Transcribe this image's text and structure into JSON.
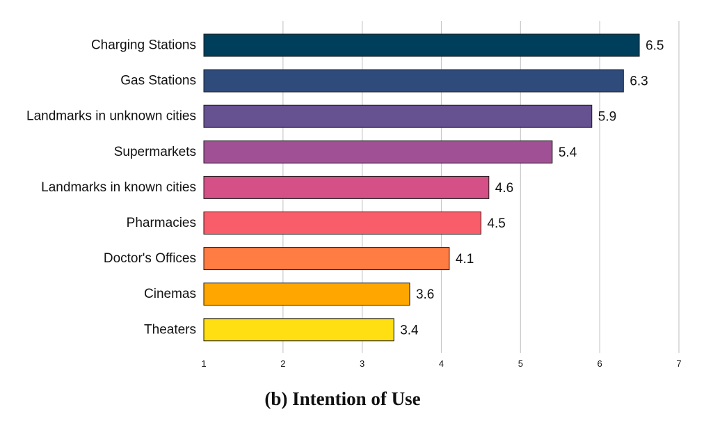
{
  "caption": "(b) Intention of Use",
  "chart_data": {
    "type": "bar",
    "orientation": "horizontal",
    "title": "",
    "xlabel": "",
    "ylabel": "",
    "xlim": [
      1,
      7
    ],
    "ticks": [
      "1",
      "2",
      "3",
      "4",
      "5",
      "6",
      "7"
    ],
    "grid": "vertical",
    "categories": [
      "Charging Stations",
      "Gas Stations",
      "Landmarks in unknown cities",
      "Supermarkets",
      "Landmarks in known cities",
      "Pharmacies",
      "Doctor's Offices",
      "Cinemas",
      "Theaters"
    ],
    "values": [
      6.5,
      6.3,
      5.9,
      5.4,
      4.6,
      4.5,
      4.1,
      3.6,
      3.4
    ],
    "value_labels": [
      "6.5",
      "6.3",
      "5.9",
      "5.4",
      "4.6",
      "4.5",
      "4.1",
      "3.6",
      "3.4"
    ],
    "colors": [
      "#003f5c",
      "#2f4b7c",
      "#665191",
      "#a05195",
      "#d45087",
      "#f95d6a",
      "#ff7c43",
      "#ffa600",
      "#ffdf11"
    ]
  }
}
